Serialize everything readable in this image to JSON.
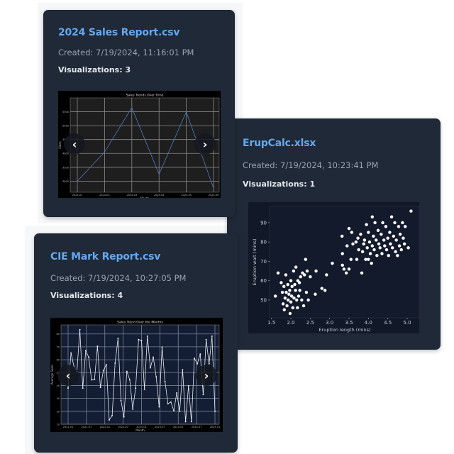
{
  "cards": [
    {
      "title": "2024 Sales Report.csv",
      "created": "Created: 7/19/2024, 11:16:01 PM",
      "visualizations": "Visualizations: 3"
    },
    {
      "title": "ErupCalc.xlsx",
      "created": "Created: 7/19/2024, 10:23:41 PM",
      "visualizations": "Visualizations: 1"
    },
    {
      "title": "CIE Mark Report.csv",
      "created": "Created: 7/19/2024, 10:27:05 PM",
      "visualizations": "Visualizations: 4"
    }
  ],
  "icons": {
    "prev": "chevron-left-icon",
    "next": "chevron-right-icon"
  },
  "colors": {
    "card_bg": "#1f2937",
    "title": "#63a9ef",
    "accent_line": "#4f7bbd"
  },
  "chart_data": [
    {
      "type": "line",
      "title": "Sales Trends Over Time",
      "xlabel": "Month",
      "ylabel": "Sales",
      "x": [
        "2024-01",
        "2024-02",
        "2024-03",
        "2024-04",
        "2024-05",
        "2024-06"
      ],
      "values": [
        3000,
        4050,
        5650,
        3250,
        5500,
        2750
      ],
      "yticks": [
        3000,
        3500,
        4000,
        4500,
        5000,
        5500
      ],
      "ylim": [
        2600,
        6000
      ],
      "grid": true,
      "line_color": "#4f7bbd"
    },
    {
      "type": "scatter",
      "title": "",
      "xlabel": "Eruption length (mins)",
      "ylabel": "Eruption wait (mins)",
      "xticks": [
        1.5,
        2.0,
        2.5,
        3.0,
        3.5,
        4.0,
        4.5,
        5.0
      ],
      "yticks": [
        50,
        60,
        70,
        80,
        90
      ],
      "xlim": [
        1.45,
        5.33
      ],
      "ylim": [
        40.8,
        98.4
      ],
      "grid": false,
      "points": [
        [
          1.6,
          52
        ],
        [
          1.67,
          64
        ],
        [
          1.75,
          59
        ],
        [
          1.78,
          54
        ],
        [
          1.8,
          48
        ],
        [
          1.82,
          57
        ],
        [
          1.83,
          45
        ],
        [
          1.85,
          51
        ],
        [
          1.87,
          63
        ],
        [
          1.88,
          54
        ],
        [
          1.9,
          47
        ],
        [
          1.92,
          58
        ],
        [
          1.93,
          50
        ],
        [
          1.95,
          53
        ],
        [
          1.97,
          55
        ],
        [
          1.98,
          43
        ],
        [
          2.0,
          60
        ],
        [
          2.0,
          49
        ],
        [
          2.02,
          52
        ],
        [
          2.03,
          57
        ],
        [
          2.05,
          46
        ],
        [
          2.07,
          65
        ],
        [
          2.08,
          51
        ],
        [
          2.1,
          58
        ],
        [
          2.12,
          55
        ],
        [
          2.13,
          67
        ],
        [
          2.15,
          50
        ],
        [
          2.17,
          46
        ],
        [
          2.18,
          60
        ],
        [
          2.2,
          52
        ],
        [
          2.22,
          59
        ],
        [
          2.23,
          55
        ],
        [
          2.25,
          62
        ],
        [
          2.28,
          50
        ],
        [
          2.3,
          64
        ],
        [
          2.33,
          47
        ],
        [
          2.35,
          63
        ],
        [
          2.38,
          71
        ],
        [
          2.4,
          54
        ],
        [
          2.42,
          65
        ],
        [
          2.45,
          50
        ],
        [
          2.5,
          62
        ],
        [
          2.63,
          53
        ],
        [
          2.65,
          65
        ],
        [
          2.8,
          56
        ],
        [
          2.88,
          55
        ],
        [
          2.92,
          63
        ],
        [
          3.07,
          69
        ],
        [
          3.32,
          83
        ],
        [
          3.33,
          74
        ],
        [
          3.33,
          68
        ],
        [
          3.37,
          66
        ],
        [
          3.43,
          64
        ],
        [
          3.45,
          78
        ],
        [
          3.5,
          87
        ],
        [
          3.5,
          66
        ],
        [
          3.55,
          71
        ],
        [
          3.57,
          85
        ],
        [
          3.6,
          79
        ],
        [
          3.68,
          80
        ],
        [
          3.7,
          71
        ],
        [
          3.73,
          82
        ],
        [
          3.75,
          76
        ],
        [
          3.8,
          84
        ],
        [
          3.83,
          64
        ],
        [
          3.85,
          75
        ],
        [
          3.88,
          79
        ],
        [
          3.9,
          81
        ],
        [
          3.93,
          71
        ],
        [
          3.95,
          89
        ],
        [
          3.97,
          77
        ],
        [
          4.0,
          85
        ],
        [
          4.0,
          71
        ],
        [
          4.03,
          80
        ],
        [
          4.05,
          74
        ],
        [
          4.08,
          69
        ],
        [
          4.1,
          93
        ],
        [
          4.1,
          78
        ],
        [
          4.13,
          83
        ],
        [
          4.15,
          76
        ],
        [
          4.17,
          90
        ],
        [
          4.2,
          81
        ],
        [
          4.22,
          73
        ],
        [
          4.25,
          86
        ],
        [
          4.27,
          79
        ],
        [
          4.3,
          77
        ],
        [
          4.33,
          84
        ],
        [
          4.35,
          74
        ],
        [
          4.37,
          90
        ],
        [
          4.4,
          81
        ],
        [
          4.42,
          78
        ],
        [
          4.45,
          88
        ],
        [
          4.47,
          76
        ],
        [
          4.5,
          82
        ],
        [
          4.52,
          73
        ],
        [
          4.55,
          85
        ],
        [
          4.57,
          79
        ],
        [
          4.6,
          93
        ],
        [
          4.62,
          77
        ],
        [
          4.65,
          83
        ],
        [
          4.68,
          90
        ],
        [
          4.7,
          75
        ],
        [
          4.72,
          81
        ],
        [
          4.75,
          73
        ],
        [
          4.78,
          88
        ],
        [
          4.8,
          78
        ],
        [
          4.82,
          84
        ],
        [
          4.85,
          76
        ],
        [
          4.88,
          90
        ],
        [
          4.9,
          82
        ],
        [
          4.93,
          79
        ],
        [
          4.95,
          88
        ],
        [
          5.03,
          77
        ],
        [
          5.1,
          96
        ]
      ],
      "point_color": "#ffffff"
    },
    {
      "type": "line",
      "title": "Sales Trend Over the Months",
      "xlabel": "Month",
      "ylabel": "Average Sales",
      "xticks": [
        "2021-01",
        "2021-07",
        "2022-01",
        "2022-07",
        "2023-01",
        "2023-07",
        "2024-01",
        "2024-07",
        "2025-01"
      ],
      "values": [
        38,
        65.2,
        54.6,
        50.9,
        83.3,
        38,
        67,
        62,
        44.4,
        44.8,
        70.4,
        38.5,
        51.5,
        56.1,
        13.3,
        16.7,
        57.4,
        76.5,
        28.3,
        15.7,
        50.9,
        44.4,
        21.7,
        38,
        75.6,
        74.8,
        37,
        78.3,
        53.7,
        62,
        46.7,
        23.5,
        69.8,
        43,
        25.9,
        27.2,
        20.4,
        34.3,
        20,
        52.2,
        12,
        39.8,
        12,
        61.1,
        56.9,
        64.4,
        33,
        75.6,
        56.9,
        78.3,
        20
      ],
      "yticks": [
        10,
        20,
        30,
        40,
        50,
        60,
        70,
        80
      ],
      "ylim": [
        10,
        87
      ],
      "grid": true,
      "line_color": "#e8ecf2"
    }
  ]
}
